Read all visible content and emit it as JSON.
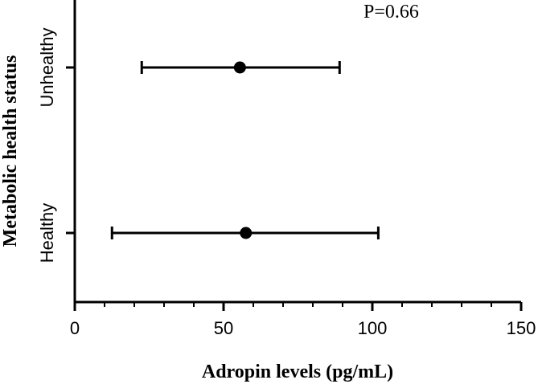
{
  "chart_data": {
    "type": "scatter",
    "orientation": "horizontal",
    "xlabel": "Adropin levels (pg/mL)",
    "ylabel": "Metabolic health status",
    "xlim": [
      0,
      150
    ],
    "x_ticks": [
      "0",
      "50",
      "100",
      "150"
    ],
    "categories": [
      "Unhealthy",
      "Healthy"
    ],
    "series": [
      {
        "points": [
          {
            "category": "Unhealthy",
            "mean": 55.5,
            "lower": 22.5,
            "upper": 89
          },
          {
            "category": "Healthy",
            "mean": 57.5,
            "lower": 12.5,
            "upper": 102
          }
        ]
      }
    ],
    "annotations": [
      "P=0.66"
    ],
    "grid": false,
    "legend": "none"
  }
}
